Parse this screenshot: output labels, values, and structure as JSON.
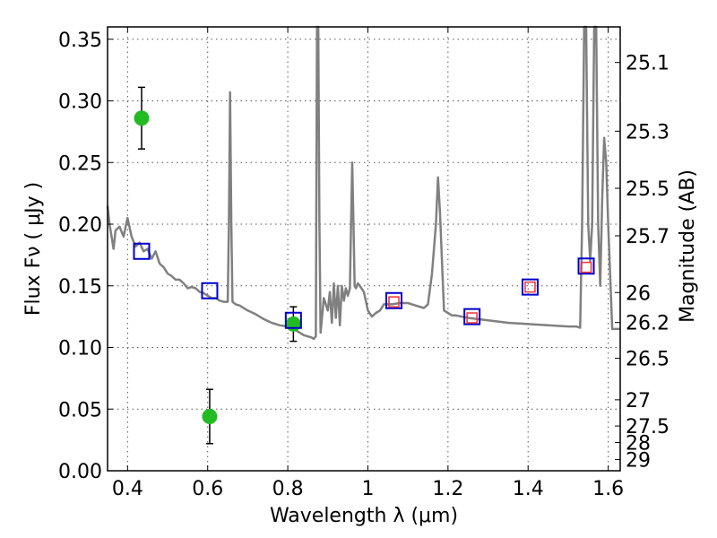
{
  "chart_data": {
    "type": "scatter",
    "xlabel": "Wavelength  λ (μm)",
    "ylabel": "Flux  Fν  ( μJy )",
    "y2label": "Magnitude (AB)",
    "xlim": [
      0.35,
      1.63
    ],
    "ylim": [
      0.0,
      0.36
    ],
    "grid": true,
    "x_ticks": [
      0.4,
      0.6,
      0.8,
      1.0,
      1.2,
      1.4,
      1.6
    ],
    "x_tick_labels": [
      "0.4",
      "0.6",
      "0.8",
      "1",
      "1.2",
      "1.4",
      "1.6"
    ],
    "y_ticks": [
      0.0,
      0.05,
      0.1,
      0.15,
      0.2,
      0.25,
      0.3,
      0.35
    ],
    "y_tick_labels": [
      "0.00",
      "0.05",
      "0.10",
      "0.15",
      "0.20",
      "0.25",
      "0.30",
      "0.35"
    ],
    "mag_ticks": [
      "25.1",
      "25.3",
      "25.5",
      "25.7",
      "26",
      "26.2",
      "26.5",
      "27",
      "27.5",
      "28",
      "29"
    ],
    "colors": {
      "sed": "#808080",
      "photometry": "#22bb22",
      "model_box": "#0000cc",
      "model_inner": "#ee3333",
      "errorbar": "#000000"
    },
    "series": [
      {
        "type": "line",
        "x": [
          0.35,
          0.355,
          0.36,
          0.365,
          0.37,
          0.38,
          0.39,
          0.4,
          0.41,
          0.42,
          0.43,
          0.44,
          0.45,
          0.46,
          0.47,
          0.48,
          0.49,
          0.5,
          0.51,
          0.52,
          0.53,
          0.54,
          0.55,
          0.56,
          0.57,
          0.58,
          0.59,
          0.6,
          0.61,
          0.62,
          0.63,
          0.64,
          0.65,
          0.653,
          0.656,
          0.659,
          0.662,
          0.67,
          0.68,
          0.7,
          0.72,
          0.74,
          0.76,
          0.78,
          0.8,
          0.82,
          0.84,
          0.86,
          0.865,
          0.87,
          0.873,
          0.876,
          0.879,
          0.882,
          0.89,
          0.9,
          0.905,
          0.91,
          0.915,
          0.92,
          0.925,
          0.93,
          0.935,
          0.94,
          0.945,
          0.95,
          0.955,
          0.958,
          0.961,
          0.964,
          0.967,
          0.97,
          0.975,
          0.98,
          0.99,
          1.0,
          1.01,
          1.02,
          1.03,
          1.04,
          1.05,
          1.06,
          1.08,
          1.1,
          1.12,
          1.14,
          1.15,
          1.16,
          1.17,
          1.175,
          1.18,
          1.19,
          1.2,
          1.21,
          1.22,
          1.25,
          1.3,
          1.35,
          1.4,
          1.45,
          1.5,
          1.52,
          1.53,
          1.535,
          1.54,
          1.545,
          1.55,
          1.555,
          1.56,
          1.565,
          1.57,
          1.575,
          1.58,
          1.585,
          1.59,
          1.595,
          1.6,
          1.61,
          1.63
        ],
        "y": [
          0.215,
          0.2,
          0.19,
          0.18,
          0.195,
          0.198,
          0.19,
          0.205,
          0.19,
          0.182,
          0.185,
          0.178,
          0.18,
          0.172,
          0.178,
          0.168,
          0.165,
          0.16,
          0.158,
          0.155,
          0.155,
          0.152,
          0.148,
          0.149,
          0.148,
          0.145,
          0.144,
          0.142,
          0.14,
          0.14,
          0.138,
          0.137,
          0.137,
          0.2,
          0.307,
          0.2,
          0.137,
          0.135,
          0.134,
          0.13,
          0.127,
          0.123,
          0.12,
          0.118,
          0.117,
          0.114,
          0.11,
          0.108,
          0.107,
          0.109,
          0.36,
          0.36,
          0.2,
          0.112,
          0.14,
          0.13,
          0.145,
          0.12,
          0.152,
          0.124,
          0.15,
          0.118,
          0.15,
          0.138,
          0.148,
          0.142,
          0.148,
          0.2,
          0.25,
          0.2,
          0.15,
          0.148,
          0.152,
          0.15,
          0.145,
          0.13,
          0.125,
          0.128,
          0.13,
          0.135,
          0.135,
          0.135,
          0.136,
          0.136,
          0.134,
          0.132,
          0.135,
          0.16,
          0.2,
          0.238,
          0.21,
          0.13,
          0.128,
          0.126,
          0.126,
          0.124,
          0.122,
          0.12,
          0.119,
          0.118,
          0.117,
          0.117,
          0.116,
          0.2,
          0.36,
          0.36,
          0.2,
          0.17,
          0.2,
          0.36,
          0.36,
          0.2,
          0.15,
          0.22,
          0.27,
          0.25,
          0.2,
          0.115,
          0.115
        ]
      },
      {
        "type": "errorbar",
        "points": [
          {
            "x": 0.435,
            "y": 0.286,
            "yerr": 0.025
          },
          {
            "x": 0.605,
            "y": 0.044,
            "yerr": 0.022
          },
          {
            "x": 0.814,
            "y": 0.119,
            "yerr": 0.014
          }
        ]
      },
      {
        "type": "square",
        "points": [
          {
            "x": 0.435,
            "y": 0.178
          },
          {
            "x": 0.605,
            "y": 0.146
          },
          {
            "x": 0.814,
            "y": 0.122
          },
          {
            "x": 1.065,
            "y": 0.138
          },
          {
            "x": 1.26,
            "y": 0.125
          },
          {
            "x": 1.405,
            "y": 0.149
          },
          {
            "x": 1.545,
            "y": 0.166
          }
        ]
      },
      {
        "type": "inner-square",
        "points": [
          {
            "x": 1.065,
            "y": 0.137
          },
          {
            "x": 1.26,
            "y": 0.124
          },
          {
            "x": 1.405,
            "y": 0.149
          },
          {
            "x": 1.545,
            "y": 0.165
          }
        ]
      }
    ]
  }
}
